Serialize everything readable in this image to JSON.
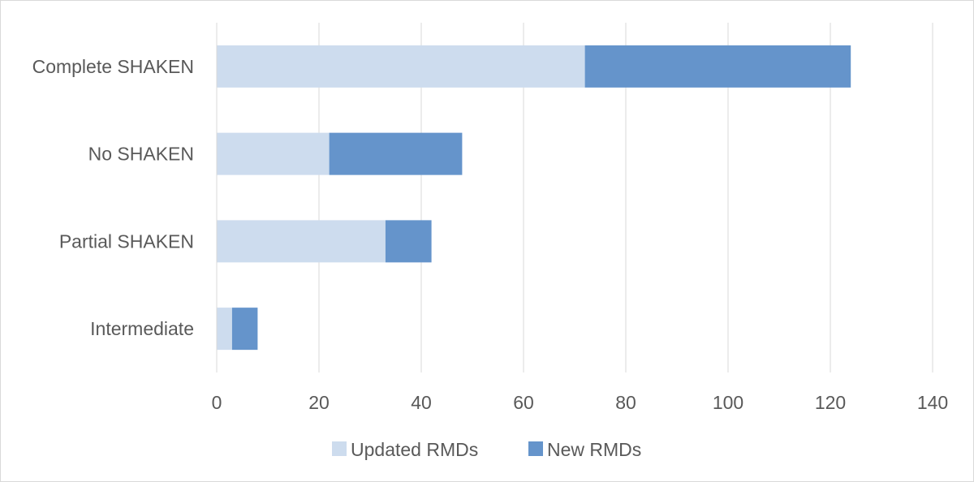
{
  "chart_data": {
    "type": "bar",
    "orientation": "horizontal",
    "stacked": true,
    "categories": [
      "Complete SHAKEN",
      "No SHAKEN",
      "Partial SHAKEN",
      "Intermediate"
    ],
    "series": [
      {
        "name": "Updated RMDs",
        "color": "#cddcee",
        "values": [
          72,
          22,
          33,
          3
        ]
      },
      {
        "name": "New RMDs",
        "color": "#6594cb",
        "values": [
          52,
          26,
          9,
          5
        ]
      }
    ],
    "x_ticks": [
      "0",
      "20",
      "40",
      "60",
      "80",
      "100",
      "120",
      "140"
    ],
    "xlim": [
      0,
      140
    ],
    "grid": "vertical",
    "legend_position": "bottom",
    "title": "",
    "xlabel": "",
    "ylabel": ""
  }
}
